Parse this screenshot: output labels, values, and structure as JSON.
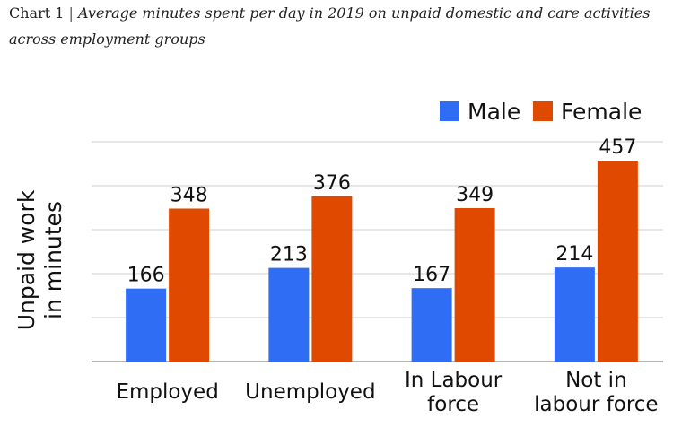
{
  "caption": {
    "label": "Chart 1",
    "separator": "|",
    "title": "Average minutes spent per day in 2019 on unpaid domestic and care activities across employment groups"
  },
  "chart_data": {
    "type": "bar",
    "categories": [
      [
        "Employed"
      ],
      [
        "Unemployed"
      ],
      [
        "In Labour",
        "force"
      ],
      [
        "Not in",
        "labour force"
      ]
    ],
    "series": [
      {
        "name": "Male",
        "color": "#2f6df5",
        "values": [
          166,
          213,
          167,
          214
        ]
      },
      {
        "name": "Female",
        "color": "#e04a00",
        "values": [
          348,
          376,
          349,
          457
        ]
      }
    ],
    "ylabel": [
      "Unpaid work",
      "in minutes"
    ],
    "ylim": [
      0,
      500
    ],
    "grid": true,
    "legend": "top-right"
  }
}
